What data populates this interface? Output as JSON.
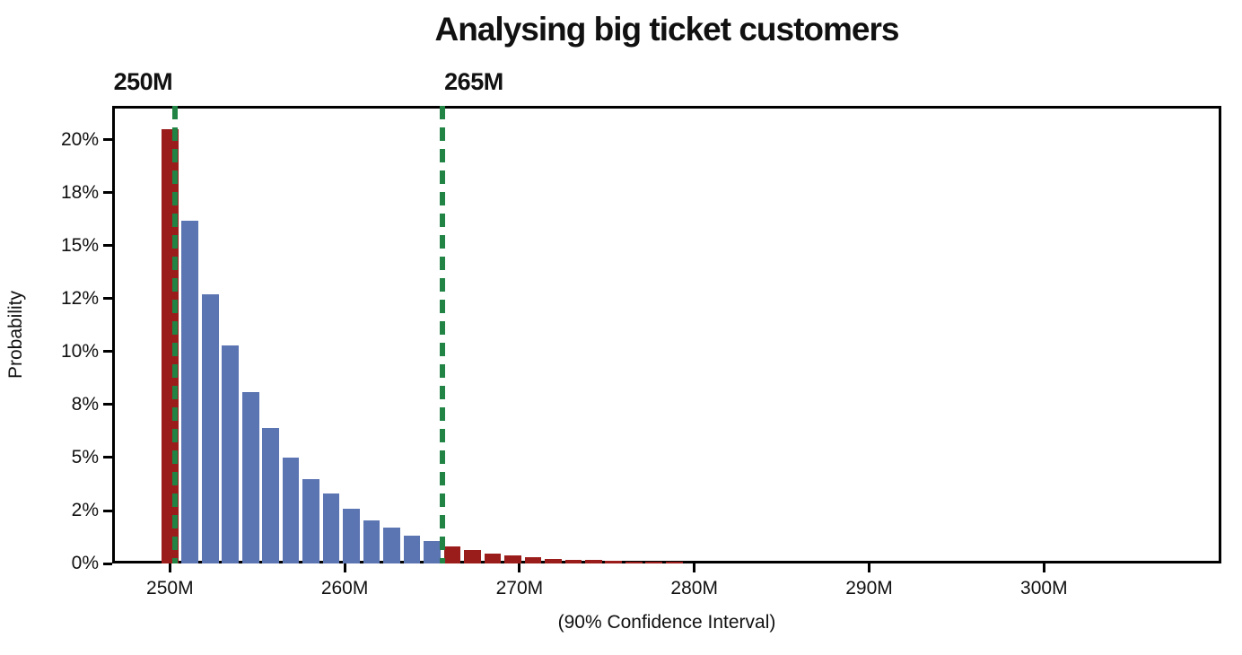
{
  "title": "Analysing big ticket customers",
  "chart_data": {
    "type": "bar",
    "title": "Analysing big ticket customers",
    "xlabel": "(90% Confidence Interval)",
    "ylabel": "Probability",
    "x_unit": "M",
    "xlim": [
      246.7,
      310.15
    ],
    "ylim": [
      0,
      21.6
    ],
    "grid": false,
    "legend": null,
    "x_ticks": [
      250,
      260,
      270,
      280,
      290,
      300
    ],
    "x_tick_labels": [
      "250M",
      "260M",
      "270M",
      "280M",
      "290M",
      "300M"
    ],
    "y_ticks": [
      0,
      2.5,
      5,
      7.5,
      10,
      12.5,
      15,
      17.5,
      20
    ],
    "y_tick_labels": [
      "0%",
      "2%",
      "5%",
      "8%",
      "10%",
      "12%",
      "15%",
      "18%",
      "20%"
    ],
    "bar_width": 0.95,
    "bars": [
      {
        "x": 250.0,
        "value": 20.5,
        "color": "red"
      },
      {
        "x": 251.15,
        "value": 16.2,
        "color": "blue"
      },
      {
        "x": 252.31,
        "value": 12.7,
        "color": "blue"
      },
      {
        "x": 253.46,
        "value": 10.3,
        "color": "blue"
      },
      {
        "x": 254.62,
        "value": 8.1,
        "color": "blue"
      },
      {
        "x": 255.77,
        "value": 6.4,
        "color": "blue"
      },
      {
        "x": 256.92,
        "value": 5.0,
        "color": "blue"
      },
      {
        "x": 258.08,
        "value": 4.0,
        "color": "blue"
      },
      {
        "x": 259.23,
        "value": 3.3,
        "color": "blue"
      },
      {
        "x": 260.38,
        "value": 2.6,
        "color": "blue"
      },
      {
        "x": 261.54,
        "value": 2.05,
        "color": "blue"
      },
      {
        "x": 262.69,
        "value": 1.7,
        "color": "blue"
      },
      {
        "x": 263.85,
        "value": 1.3,
        "color": "blue"
      },
      {
        "x": 265.0,
        "value": 1.05,
        "color": "blue"
      },
      {
        "x": 266.15,
        "value": 0.8,
        "color": "red"
      },
      {
        "x": 267.31,
        "value": 0.65,
        "color": "red"
      },
      {
        "x": 268.46,
        "value": 0.48,
        "color": "red"
      },
      {
        "x": 269.62,
        "value": 0.37,
        "color": "red"
      },
      {
        "x": 270.77,
        "value": 0.3,
        "color": "red"
      },
      {
        "x": 271.92,
        "value": 0.23,
        "color": "red"
      },
      {
        "x": 273.08,
        "value": 0.18,
        "color": "red"
      },
      {
        "x": 274.23,
        "value": 0.16,
        "color": "red"
      },
      {
        "x": 275.38,
        "value": 0.13,
        "color": "red"
      },
      {
        "x": 276.54,
        "value": 0.1,
        "color": "red"
      },
      {
        "x": 277.69,
        "value": 0.08,
        "color": "red"
      },
      {
        "x": 278.85,
        "value": 0.08,
        "color": "red"
      }
    ],
    "vlines": [
      {
        "x": 250.3,
        "label": "250M",
        "label_align": "right"
      },
      {
        "x": 265.6,
        "label": "265M",
        "label_align": "left"
      }
    ],
    "colors": {
      "blue_bar": "#5b74b2",
      "red_bar": "#9a1d1b",
      "ci_line_green": "#218445",
      "axis_black": "#000000"
    }
  }
}
